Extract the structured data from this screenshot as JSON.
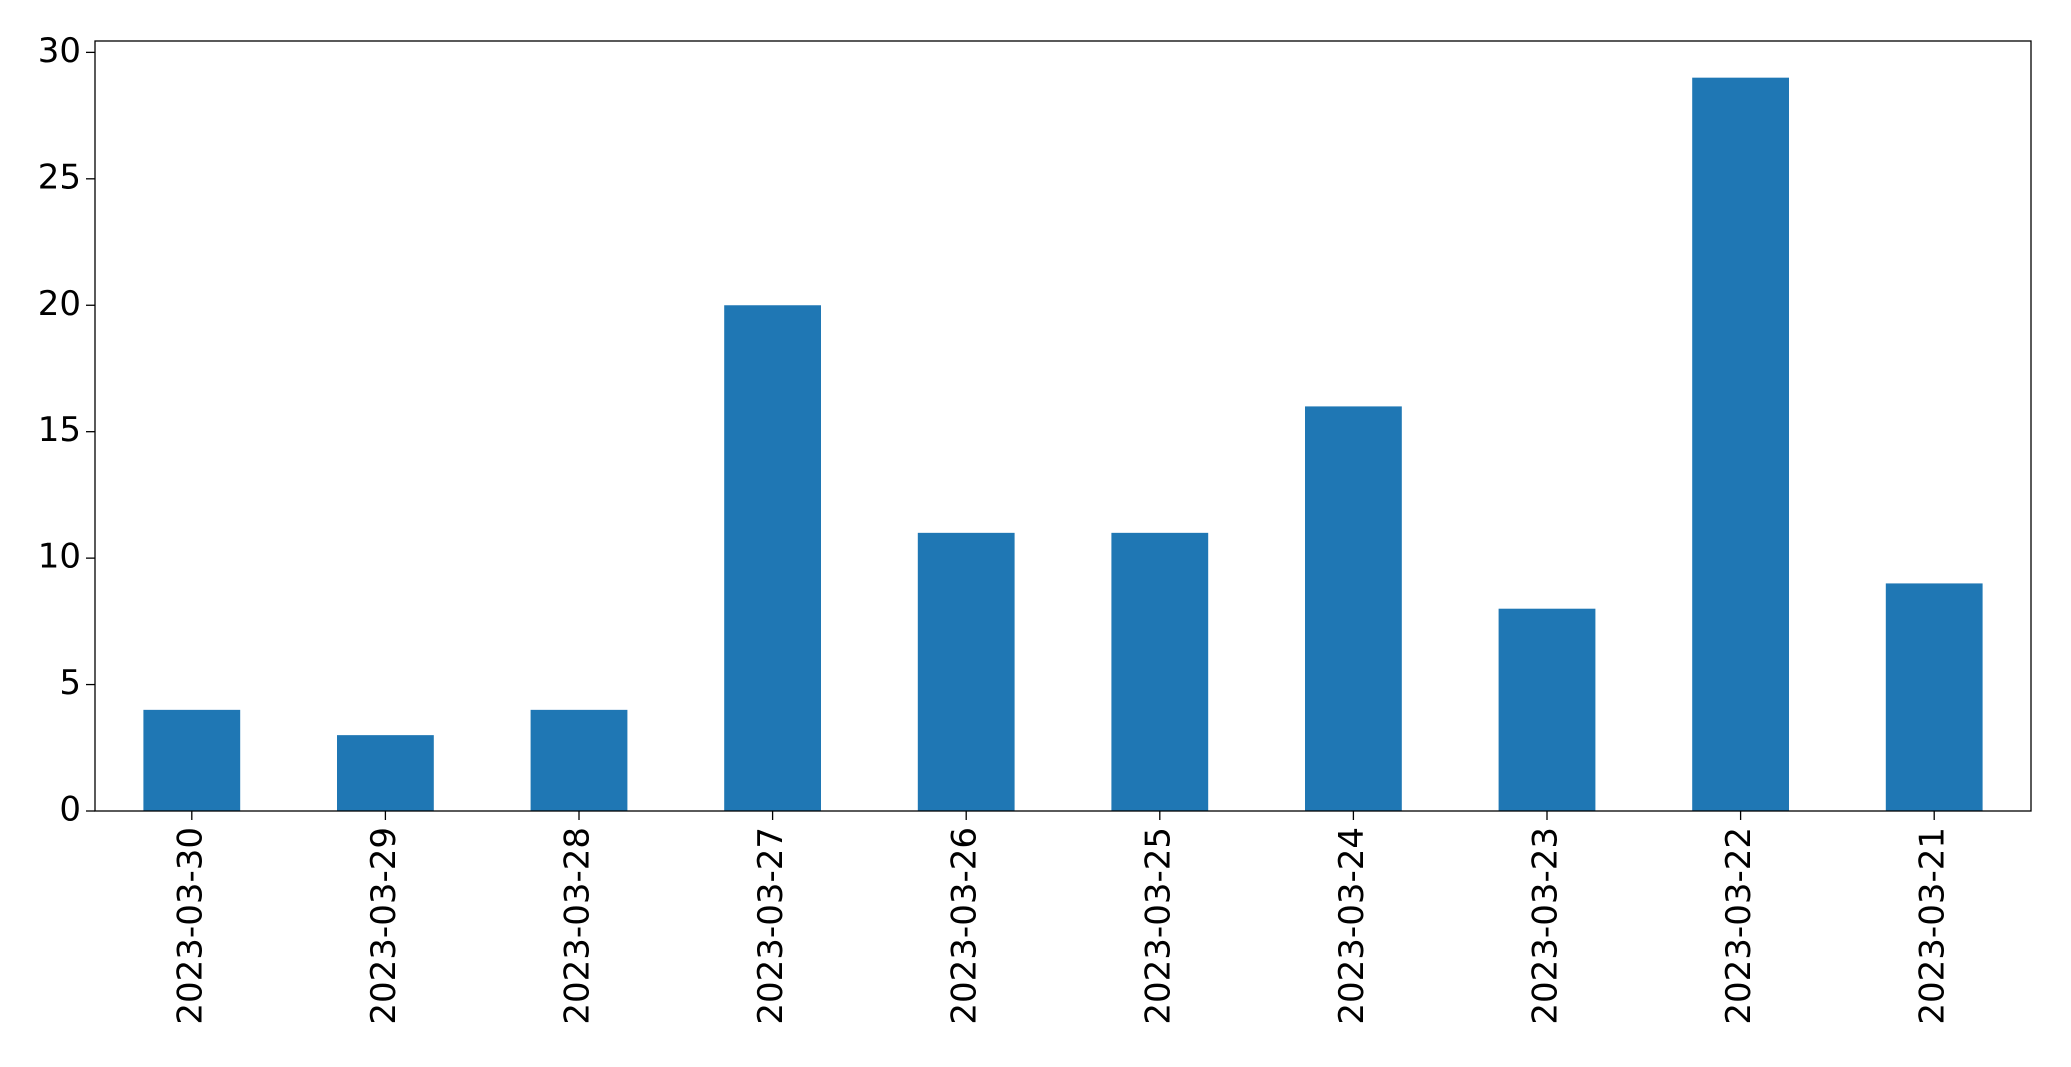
{
  "chart_data": {
    "type": "bar",
    "categories": [
      "2023-03-30",
      "2023-03-29",
      "2023-03-28",
      "2023-03-27",
      "2023-03-26",
      "2023-03-25",
      "2023-03-24",
      "2023-03-23",
      "2023-03-22",
      "2023-03-21"
    ],
    "values": [
      4,
      3,
      4,
      20,
      11,
      11,
      16,
      8,
      29,
      9
    ],
    "color": "#1f77b4",
    "ylim": [
      0,
      30.45
    ],
    "yticks": [
      0,
      5,
      10,
      15,
      20,
      25,
      30
    ],
    "grid": false
  }
}
